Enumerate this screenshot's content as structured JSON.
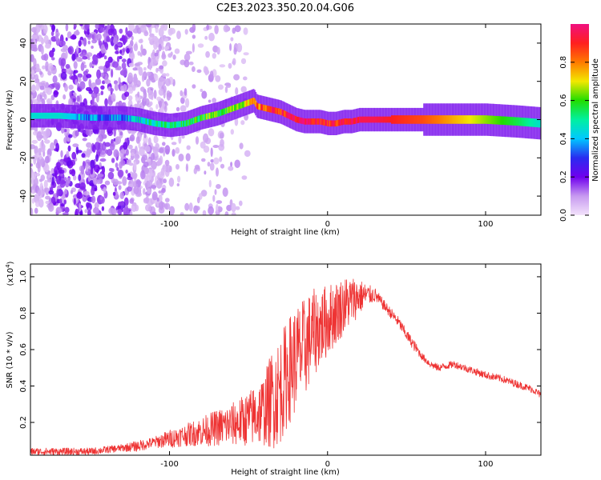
{
  "figure": {
    "title": "C2E3.2023.350.20.04.G06"
  },
  "chart_data": [
    {
      "type": "heatmap",
      "xlabel": "Height of straight line (km)",
      "ylabel": "Frequency (Hz)",
      "xlim": [
        -188,
        135
      ],
      "ylim": [
        -50,
        50
      ],
      "x_ticks": [
        -100,
        0,
        100
      ],
      "y_ticks": [
        -40,
        -20,
        0,
        20,
        40
      ],
      "colorbar": {
        "label": "Normalized spectral amplitude",
        "range": [
          0.0,
          1.0
        ],
        "ticks": [
          0.0,
          0.2,
          0.4,
          0.6,
          0.8
        ],
        "colormap": [
          "#f3e3fb",
          "#c79af0",
          "#7000ee",
          "#2a2bf0",
          "#00c8ff",
          "#00f0a0",
          "#22dd00",
          "#f2e800",
          "#ff7a00",
          "#ff1f1f",
          "#f01080"
        ]
      },
      "ridge": {
        "x": [
          -188,
          -170,
          -150,
          -130,
          -120,
          -110,
          -100,
          -90,
          -80,
          -70,
          -60,
          -50,
          -47,
          -45,
          -40,
          -35,
          -30,
          -25,
          -20,
          -15,
          -10,
          -5,
          0,
          5,
          10,
          15,
          20,
          30,
          40,
          60,
          80,
          100,
          120,
          135
        ],
        "y": [
          2,
          2,
          1,
          1,
          0,
          -2,
          -3,
          -2,
          1,
          3,
          6,
          9,
          10,
          7,
          6,
          5,
          4,
          2,
          0,
          -1,
          -1,
          -1,
          -2,
          -2,
          -1,
          -1,
          0,
          0,
          0,
          0,
          0,
          0,
          -1,
          -2
        ],
        "amplitude": [
          0.45,
          0.45,
          0.35,
          0.35,
          0.45,
          0.5,
          0.5,
          0.55,
          0.6,
          0.6,
          0.65,
          0.7,
          0.75,
          0.8,
          0.85,
          0.9,
          0.9,
          0.95,
          0.95,
          0.95,
          0.95,
          0.9,
          0.9,
          0.9,
          0.95,
          0.95,
          0.95,
          0.95,
          0.9,
          0.85,
          0.75,
          0.65,
          0.55,
          0.45
        ]
      },
      "noise_band_x": [
        -188,
        -100
      ]
    },
    {
      "type": "line",
      "xlabel": "Height of straight line (km)",
      "ylabel": "SNR (10 * v/v)",
      "y_multiplier": "(x10",
      "y_multiplier_exp": "4",
      "y_multiplier_close": ")",
      "xlim": [
        -188,
        135
      ],
      "ylim": [
        0.02,
        1.07
      ],
      "x_ticks": [
        -100,
        0,
        100
      ],
      "y_ticks": [
        0.2,
        0.4,
        0.6,
        0.8,
        1.0
      ],
      "series": [
        {
          "color": "#ee3333",
          "x": [
            -188,
            -170,
            -160,
            -150,
            -140,
            -130,
            -120,
            -110,
            -100,
            -90,
            -80,
            -70,
            -60,
            -50,
            -40,
            -35,
            -30,
            -25,
            -20,
            -15,
            -10,
            -5,
            0,
            5,
            10,
            15,
            20,
            25,
            30,
            35,
            40,
            45,
            50,
            55,
            60,
            65,
            70,
            75,
            80,
            90,
            100,
            110,
            120,
            130,
            135
          ],
          "values": [
            0.04,
            0.04,
            0.04,
            0.04,
            0.05,
            0.06,
            0.07,
            0.09,
            0.11,
            0.13,
            0.15,
            0.17,
            0.19,
            0.22,
            0.27,
            0.33,
            0.38,
            0.48,
            0.55,
            0.6,
            0.68,
            0.72,
            0.76,
            0.8,
            0.84,
            0.87,
            0.89,
            0.9,
            0.9,
            0.85,
            0.8,
            0.75,
            0.68,
            0.62,
            0.56,
            0.52,
            0.5,
            0.51,
            0.52,
            0.49,
            0.46,
            0.44,
            0.41,
            0.38,
            0.35
          ],
          "noise_amplitude": [
            0.02,
            0.02,
            0.02,
            0.02,
            0.02,
            0.02,
            0.03,
            0.03,
            0.05,
            0.06,
            0.08,
            0.1,
            0.12,
            0.15,
            0.2,
            0.28,
            0.3,
            0.3,
            0.3,
            0.28,
            0.25,
            0.22,
            0.2,
            0.18,
            0.16,
            0.14,
            0.1,
            0.06,
            0.04,
            0.03,
            0.03,
            0.03,
            0.03,
            0.03,
            0.02,
            0.02,
            0.02,
            0.02,
            0.02,
            0.02,
            0.02,
            0.02,
            0.02,
            0.02,
            0.02
          ]
        }
      ]
    }
  ]
}
